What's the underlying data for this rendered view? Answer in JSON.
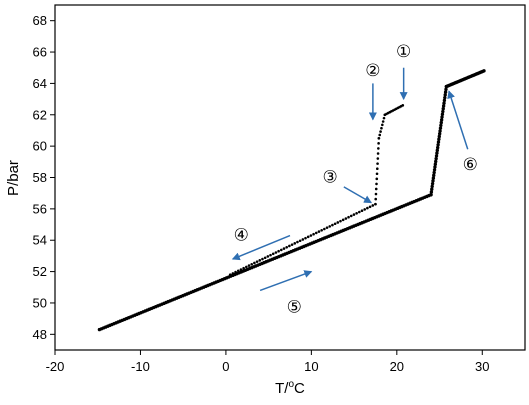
{
  "chart_data": {
    "type": "scatter",
    "title": "",
    "xlabel": "T/",
    "xlabel_superscript": "o",
    "xlabel_suffix": "C",
    "ylabel": "P/bar",
    "xlim": [
      -20,
      35
    ],
    "ylim": [
      47,
      69
    ],
    "x_ticks": [
      "-20",
      "-10",
      "0",
      "10",
      "20",
      "30"
    ],
    "x_tick_values": [
      -20,
      -10,
      0,
      10,
      20,
      30
    ],
    "y_ticks": [
      "48",
      "50",
      "52",
      "54",
      "56",
      "58",
      "60",
      "62",
      "64",
      "66",
      "68"
    ],
    "y_tick_values": [
      48,
      50,
      52,
      54,
      56,
      58,
      60,
      62,
      64,
      66,
      68
    ],
    "grid": false,
    "legend": "none",
    "series": [
      {
        "segments": [
          {
            "from": [
              -14.8,
              48.3
            ],
            "to": [
              24.0,
              56.9
            ],
            "n": 160,
            "dense": true
          },
          {
            "from": [
              24.0,
              56.9
            ],
            "to": [
              25.8,
              63.8
            ],
            "n": 40,
            "dense": true
          },
          {
            "from": [
              25.8,
              63.8
            ],
            "to": [
              30.2,
              64.8
            ],
            "n": 30,
            "dense": true
          },
          {
            "from": [
              0.5,
              51.8
            ],
            "to": [
              17.5,
              56.3
            ],
            "n": 55,
            "dense": false
          },
          {
            "from": [
              17.5,
              56.3
            ],
            "to": [
              17.9,
              60.5
            ],
            "n": 14,
            "dense": false
          },
          {
            "from": [
              17.9,
              60.5
            ],
            "to": [
              18.6,
              62.0
            ],
            "n": 8,
            "dense": false
          },
          {
            "from": [
              18.6,
              62.0
            ],
            "to": [
              20.7,
              62.6
            ],
            "n": 12,
            "dense": false
          }
        ]
      }
    ],
    "annotations": [
      {
        "label": "①",
        "x": 20.8,
        "y": 66.0,
        "arrow_from": [
          20.8,
          65.0
        ],
        "arrow_to": [
          20.8,
          63.0
        ]
      },
      {
        "label": "②",
        "x": 17.2,
        "y": 64.8,
        "arrow_from": [
          17.2,
          64.0
        ],
        "arrow_to": [
          17.2,
          61.7
        ]
      },
      {
        "label": "③",
        "x": 12.2,
        "y": 58.0,
        "arrow_from": [
          13.8,
          57.4
        ],
        "arrow_to": [
          17.0,
          56.4
        ]
      },
      {
        "label": "④",
        "x": 1.8,
        "y": 54.3,
        "arrow_from": [
          7.5,
          54.3
        ],
        "arrow_to": [
          0.8,
          52.8
        ]
      },
      {
        "label": "⑤",
        "x": 8.0,
        "y": 49.7,
        "arrow_from": [
          4.0,
          50.8
        ],
        "arrow_to": [
          10.0,
          52.0
        ]
      },
      {
        "label": "⑥",
        "x": 28.6,
        "y": 58.8,
        "arrow_from": [
          28.3,
          59.8
        ],
        "arrow_to": [
          26.1,
          63.5
        ]
      }
    ]
  }
}
